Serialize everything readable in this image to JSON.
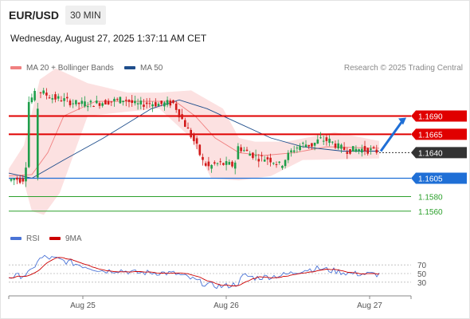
{
  "header": {
    "symbol": "EUR/USD",
    "timeframe": "30 MIN"
  },
  "datetime": "Wednesday, August 27, 2025 1:37:11 AM CET",
  "legend": {
    "ma_bb": {
      "label": "MA 20 + Bollinger Bands",
      "color": "#f08080"
    },
    "ma50": {
      "label": "MA 50",
      "color": "#1f4e8c"
    }
  },
  "credit": "Research © 2025 Trading Central",
  "rsi_legend": {
    "rsi": {
      "label": "RSI",
      "color": "#4a73d6"
    },
    "ma9": {
      "label": "9MA",
      "color": "#cc0000"
    }
  },
  "chart_data": [
    {
      "type": "candlestick",
      "title": "EUR/USD 30 MIN",
      "ylim": [
        1.1538,
        1.1745
      ],
      "x_labels": [
        "Aug 25",
        "Aug 26",
        "Aug 27"
      ],
      "levels": [
        {
          "value": 1.169,
          "label": "1.1690",
          "color": "#e00000",
          "style": "resistance"
        },
        {
          "value": 1.1665,
          "label": "1.1665",
          "color": "#e00000",
          "style": "resistance"
        },
        {
          "value": 1.164,
          "label": "1.1640",
          "color": "#333333",
          "style": "last_price"
        },
        {
          "value": 1.1605,
          "label": "1.1605",
          "color": "#1f6fd6",
          "style": "pivot"
        },
        {
          "value": 1.158,
          "label": "1.1580",
          "color": "#2ca02c",
          "style": "support"
        },
        {
          "value": 1.156,
          "label": "1.1560",
          "color": "#2ca02c",
          "style": "support"
        }
      ],
      "forecast": {
        "direction": "up",
        "from": 1.1642,
        "to": 1.169,
        "color": "#1f6fd6"
      },
      "bollinger_band_visible": true
    },
    {
      "type": "line",
      "title": "RSI",
      "ylim": [
        0,
        100
      ],
      "y_ticks": [
        30,
        50,
        70
      ],
      "series": [
        {
          "name": "RSI"
        },
        {
          "name": "9MA"
        }
      ]
    }
  ]
}
